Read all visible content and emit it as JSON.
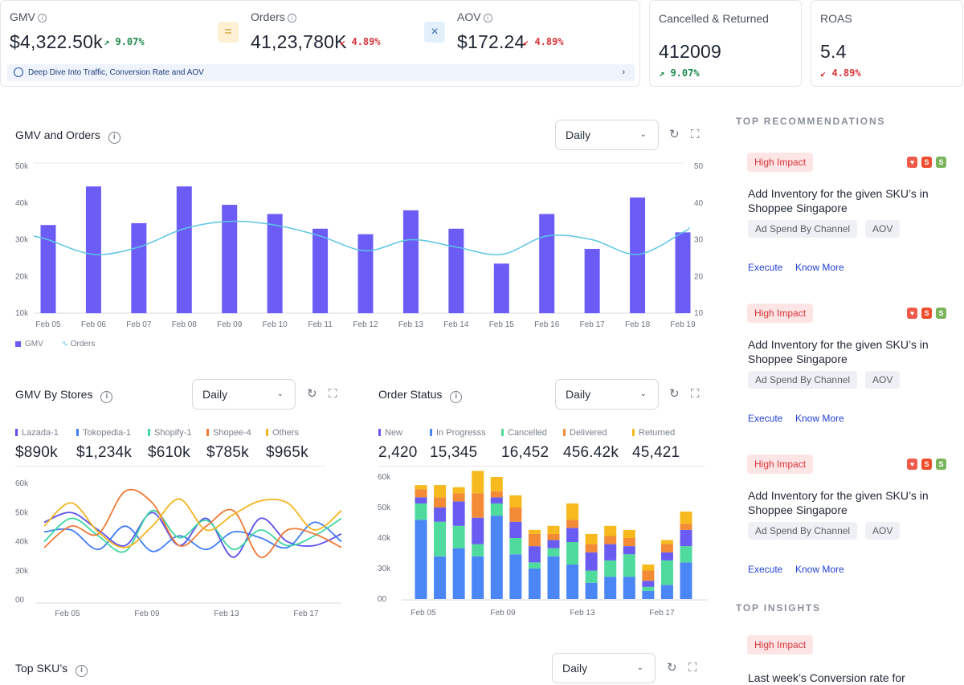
{
  "kpis": {
    "gmv": {
      "label": "GMV",
      "value": "$4,322.50k",
      "change": "9.07%",
      "dir": "up"
    },
    "orders": {
      "label": "Orders",
      "value": "41,23,780K",
      "change": "4.89%",
      "dir": "down"
    },
    "aov": {
      "label": "AOV",
      "value": "$172.24",
      "change": "4.89%",
      "dir": "down"
    },
    "equals_symbol": "=",
    "times_symbol": "×",
    "deep_dive": "Deep Dive Into Traffic, Conversion Rate and AOV",
    "cancelled": {
      "label": "Cancelled & Returned",
      "value": "412009",
      "change": "9.07%",
      "dir": "up"
    },
    "roas": {
      "label": "ROAS",
      "value": "5.4",
      "change": "4.89%",
      "dir": "down"
    }
  },
  "gmv_orders": {
    "title": "GMV and Orders",
    "period": "Daily",
    "legend": {
      "gmv": "GMV",
      "orders": "Orders"
    }
  },
  "gmv_stores": {
    "title": "GMV By Stores",
    "period": "Daily",
    "stores": [
      {
        "name": "Lazada-1",
        "value": "$890k",
        "color": "#5b4ef0"
      },
      {
        "name": "Tokopedia-1",
        "value": "$1,234k",
        "color": "#3f7ef5"
      },
      {
        "name": "Shopify-1",
        "value": "$610k",
        "color": "#3dd6a0"
      },
      {
        "name": "Shopee-4",
        "value": "$785k",
        "color": "#f07a35"
      },
      {
        "name": "Others",
        "value": "$965k",
        "color": "#f3b520"
      }
    ]
  },
  "order_status": {
    "title": "Order Status",
    "period": "Daily",
    "statuses": [
      {
        "name": "New",
        "value": "2,420",
        "color": "#6a5cf2"
      },
      {
        "name": "In Progresss",
        "value": "15,345",
        "color": "#4a86f6"
      },
      {
        "name": "Cancelled",
        "value": "16,452",
        "color": "#4fdb9e"
      },
      {
        "name": "Delivered",
        "value": "456.42k",
        "color": "#f38a36"
      },
      {
        "name": "Returned",
        "value": "45,421",
        "color": "#f6b91e"
      }
    ]
  },
  "top_sku": {
    "title": "Top SKU’s",
    "period": "Daily"
  },
  "recommendations": {
    "title": "TOP RECOMMENDATIONS",
    "items": [
      {
        "badge": "High Impact",
        "text": "Add Inventory for the given SKU’s in Shoppee Singapore",
        "chips": [
          "Ad Spend By Channel",
          "AOV"
        ],
        "execute": "Execute",
        "more": "Know More"
      },
      {
        "badge": "High Impact",
        "text": "Add Inventory for the given SKU’s in Shoppee Singapore",
        "chips": [
          "Ad Spend By Channel",
          "AOV"
        ],
        "execute": "Execute",
        "more": "Know More"
      },
      {
        "badge": "High Impact",
        "text": "Add Inventory for the given SKU’s in Shoppee Singapore",
        "chips": [
          "Ad Spend By Channel",
          "AOV"
        ],
        "execute": "Execute",
        "more": "Know More"
      }
    ]
  },
  "insights": {
    "title": "TOP INSIGHTS",
    "badge": "High Impact",
    "text": "Last week’s Conversion rate for"
  },
  "chart_data": [
    {
      "type": "bar",
      "title": "GMV and Orders",
      "categories": [
        "Feb 05",
        "Feb 06",
        "Feb 07",
        "Feb 08",
        "Feb 09",
        "Feb 10",
        "Feb 11",
        "Feb 12",
        "Feb 13",
        "Feb 14",
        "Feb 15",
        "Feb 16",
        "Feb 17",
        "Feb 18",
        "Feb 19"
      ],
      "y_ticks": [
        "50k",
        "40k",
        "30k",
        "20k",
        "10k"
      ],
      "y2_ticks": [
        "50",
        "40",
        "30",
        "20",
        "10"
      ],
      "ylim": [
        10000,
        50000
      ],
      "y2lim": [
        10,
        50
      ],
      "series": [
        {
          "name": "GMV",
          "kind": "bar",
          "color": "#6c5cf6",
          "values": [
            34000,
            44500,
            34500,
            44500,
            39500,
            37000,
            33000,
            31500,
            38000,
            33000,
            23500,
            37000,
            27500,
            41500,
            32000
          ]
        },
        {
          "name": "Orders",
          "kind": "line",
          "color": "#5cc6e6",
          "values": [
            30,
            26,
            28,
            33,
            35,
            34,
            31,
            27,
            30,
            28,
            26,
            31,
            30,
            26,
            32
          ]
        }
      ]
    },
    {
      "type": "line",
      "title": "GMV By Stores",
      "x_ticks": [
        "Feb 05",
        "Feb 09",
        "Feb 13",
        "Feb 17"
      ],
      "y_ticks": [
        "60k",
        "50k",
        "40k",
        "30k",
        "00"
      ],
      "ylim": [
        0,
        60000
      ],
      "series": [
        {
          "name": "Lazada-1",
          "color": "#5b4ef0",
          "values": [
            40000,
            45000,
            36000,
            28000,
            45000,
            28000,
            42000,
            22000,
            42000,
            30000,
            28000,
            34000
          ]
        },
        {
          "name": "Tokopedia-1",
          "color": "#3f7ef5",
          "values": [
            35000,
            36000,
            26000,
            38000,
            25000,
            33000,
            26000,
            35000,
            32000,
            27000,
            40000,
            30000
          ]
        },
        {
          "name": "Shopify-1",
          "color": "#3dd6a0",
          "values": [
            30000,
            42000,
            33000,
            25000,
            46000,
            32000,
            41000,
            26000,
            36000,
            28000,
            33000,
            42000
          ]
        },
        {
          "name": "Shopee-4",
          "color": "#f07a35",
          "values": [
            27000,
            38000,
            34000,
            56000,
            50000,
            28000,
            38000,
            46000,
            22000,
            36000,
            34000,
            27000
          ]
        },
        {
          "name": "Others",
          "color": "#f3b520",
          "values": [
            38000,
            50000,
            35000,
            27000,
            38000,
            52000,
            36000,
            44000,
            51000,
            50000,
            36000,
            46000
          ]
        }
      ]
    },
    {
      "type": "bar",
      "stacked": true,
      "title": "Order Status",
      "x_ticks": [
        "Feb 05",
        "Feb 09",
        "Feb 13",
        "Feb 17"
      ],
      "y_ticks": [
        "60k",
        "50k",
        "40k",
        "30k",
        "00"
      ],
      "ylim": [
        0,
        60000
      ],
      "categories": [
        "Feb 05",
        "Feb 06",
        "Feb 07",
        "Feb 08",
        "Feb 09",
        "Feb 10",
        "Feb 11",
        "Feb 12",
        "Feb 13",
        "Feb 14",
        "Feb 15",
        "Feb 16",
        "Feb 17",
        "Feb 18",
        "Feb 19"
      ],
      "series": [
        {
          "name": "In Progresss",
          "color": "#4a86f6",
          "values": [
            39000,
            21000,
            25000,
            21000,
            41000,
            22000,
            15000,
            21000,
            17000,
            8000,
            11000,
            11000,
            4000,
            7000,
            18000
          ]
        },
        {
          "name": "Cancelled",
          "color": "#4fdb9e",
          "values": [
            8000,
            17000,
            11000,
            6000,
            6000,
            8000,
            3000,
            4000,
            11000,
            6000,
            8000,
            11000,
            2000,
            12000,
            8000
          ]
        },
        {
          "name": "New",
          "color": "#6a5cf2",
          "values": [
            3000,
            7000,
            12000,
            13000,
            3000,
            8000,
            8000,
            4000,
            7000,
            9000,
            8000,
            4000,
            3000,
            4000,
            8000
          ]
        },
        {
          "name": "Delivered",
          "color": "#f38a36",
          "values": [
            4000,
            5000,
            4000,
            12000,
            3000,
            7000,
            6000,
            3000,
            4000,
            4000,
            4000,
            4000,
            5000,
            4000,
            3000
          ]
        },
        {
          "name": "Returned",
          "color": "#f6b91e",
          "values": [
            2000,
            6000,
            3000,
            11000,
            7000,
            6000,
            2000,
            4000,
            8000,
            5000,
            5000,
            4000,
            3000,
            2000,
            6000
          ]
        }
      ]
    }
  ]
}
